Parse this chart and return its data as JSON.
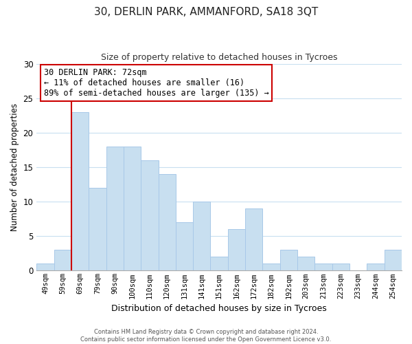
{
  "title_line1": "30, DERLIN PARK, AMMANFORD, SA18 3QT",
  "title_line2": "Size of property relative to detached houses in Tycroes",
  "xlabel": "Distribution of detached houses by size in Tycroes",
  "ylabel": "Number of detached properties",
  "categories": [
    "49sqm",
    "59sqm",
    "69sqm",
    "79sqm",
    "90sqm",
    "100sqm",
    "110sqm",
    "120sqm",
    "131sqm",
    "141sqm",
    "151sqm",
    "162sqm",
    "172sqm",
    "182sqm",
    "192sqm",
    "203sqm",
    "213sqm",
    "223sqm",
    "233sqm",
    "244sqm",
    "254sqm"
  ],
  "values": [
    1,
    3,
    23,
    12,
    18,
    18,
    16,
    14,
    7,
    10,
    2,
    6,
    9,
    1,
    3,
    2,
    1,
    1,
    0,
    1,
    3
  ],
  "bar_color": "#c8dff0",
  "bar_edge_color": "#a8c8e8",
  "highlight_bar_index": 2,
  "highlight_line_color": "#cc0000",
  "ylim": [
    0,
    30
  ],
  "yticks": [
    0,
    5,
    10,
    15,
    20,
    25,
    30
  ],
  "annotation_text": "30 DERLIN PARK: 72sqm\n← 11% of detached houses are smaller (16)\n89% of semi-detached houses are larger (135) →",
  "annotation_box_color": "#ffffff",
  "annotation_box_edge": "#cc0000",
  "footer_line1": "Contains HM Land Registry data © Crown copyright and database right 2024.",
  "footer_line2": "Contains public sector information licensed under the Open Government Licence v3.0.",
  "grid_color": "#c8dff0",
  "background_color": "#ffffff"
}
